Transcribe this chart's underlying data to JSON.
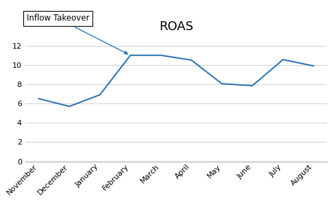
{
  "title": "ROAS",
  "months": [
    "November",
    "December",
    "January",
    "February",
    "March",
    "April",
    "May",
    "June",
    "July",
    "August"
  ],
  "values": [
    6.5,
    5.7,
    6.9,
    11.0,
    11.0,
    10.5,
    8.05,
    7.85,
    10.55,
    9.9
  ],
  "line_color": "#2E75B6",
  "ylim": [
    0,
    13
  ],
  "yticks": [
    0,
    2,
    4,
    6,
    8,
    10,
    12
  ],
  "annotation_text": "Inflow Takeover",
  "grid_color": "#D3D3D3",
  "background_color": "#FFFFFF",
  "title_fontsize": 13,
  "tick_fontsize": 8
}
